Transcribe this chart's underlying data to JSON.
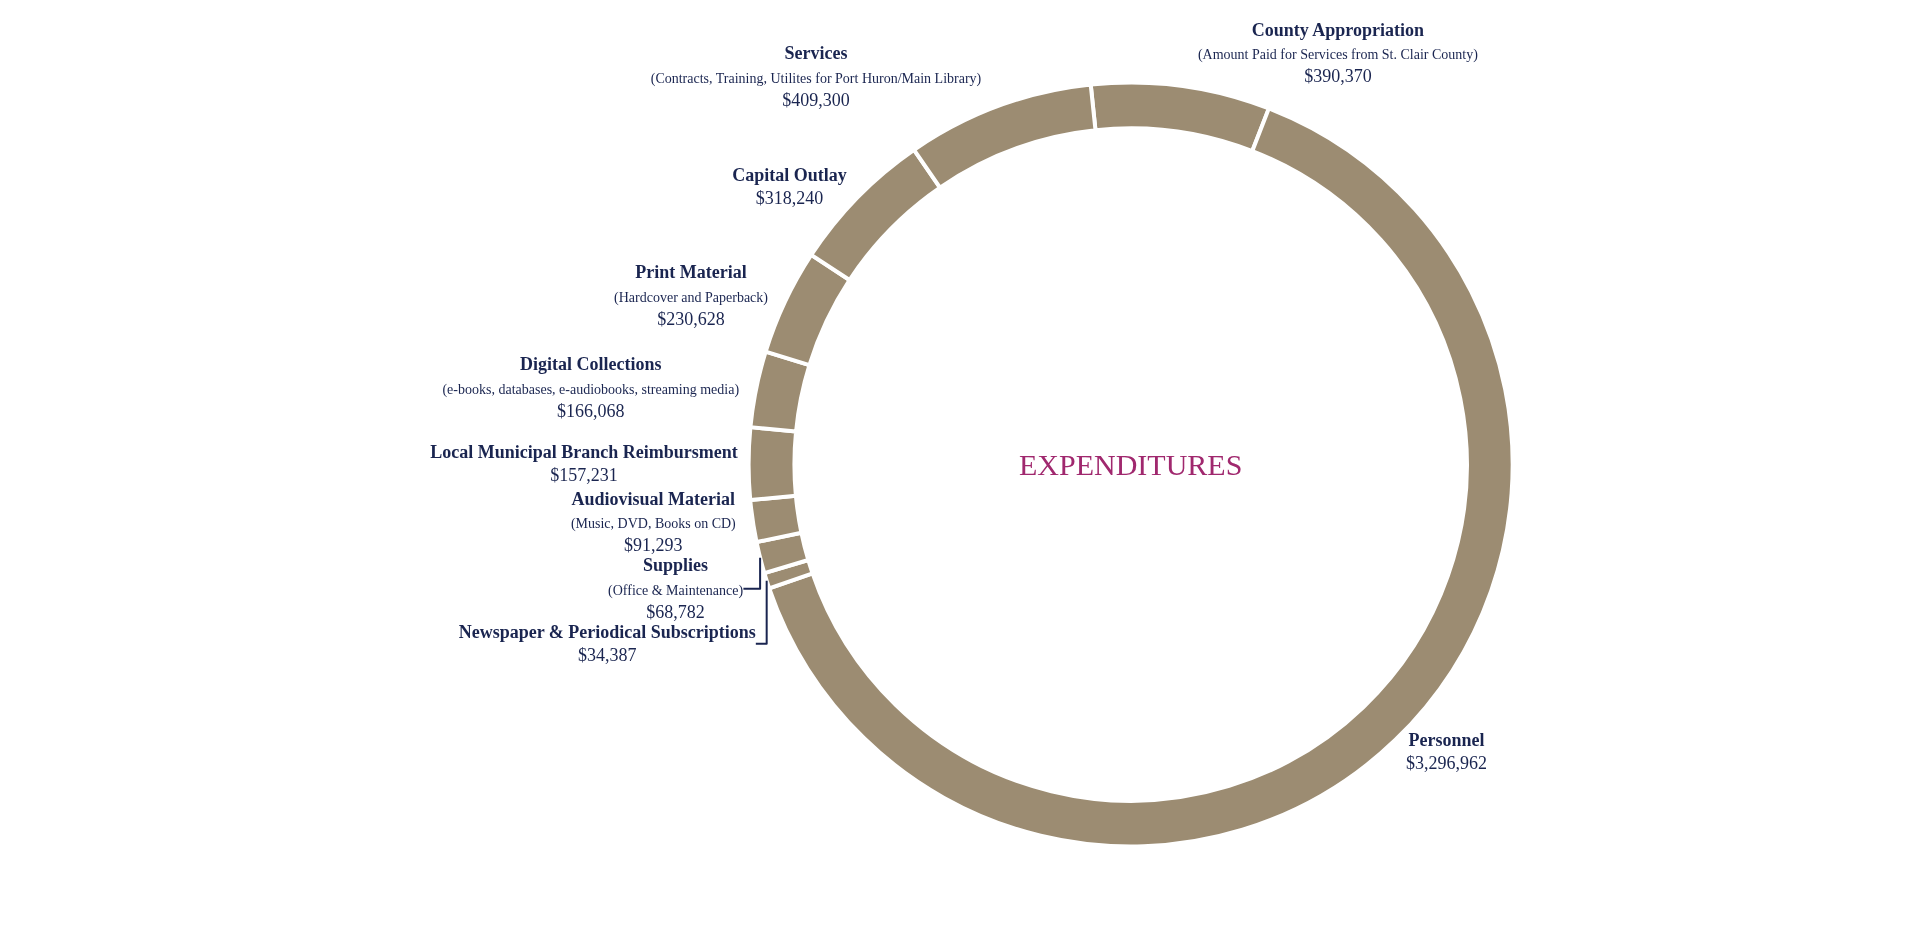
{
  "chart_data": {
    "type": "donut",
    "categories": [
      "County Appropriation\n(Amount Paid for Services from St. Clair County)",
      "Personnel",
      "Newspaper & Periodical Subscriptions",
      "Supplies\n(Office & Maintenance)",
      "Audiovisual Material\n(Music, DVD, Books on CD)",
      "Local Municipal Branch Reimbursment",
      "Digital Collections\n(e-books, databases, e-audiobooks, streaming media)",
      "Print Material\n(Hardcover and Paperback)",
      "Capital Outlay",
      "Services\n(Contracts, Training, Utilites for Port Huron/Main Library)"
    ],
    "values": [
      390370,
      3296962,
      34387,
      68782,
      91293,
      157231,
      166068,
      230628,
      318240,
      409300
    ],
    "value_labels": [
      "$390,370",
      "$3,296,962",
      "$34,387",
      "$68,782",
      "$91,293",
      "$157,231",
      "$166,068",
      "$230,628",
      "$318,240",
      "$409,300"
    ],
    "color": "#9c8c72",
    "annotations": [
      "EXPENDITURES"
    ],
    "legend": false
  }
}
